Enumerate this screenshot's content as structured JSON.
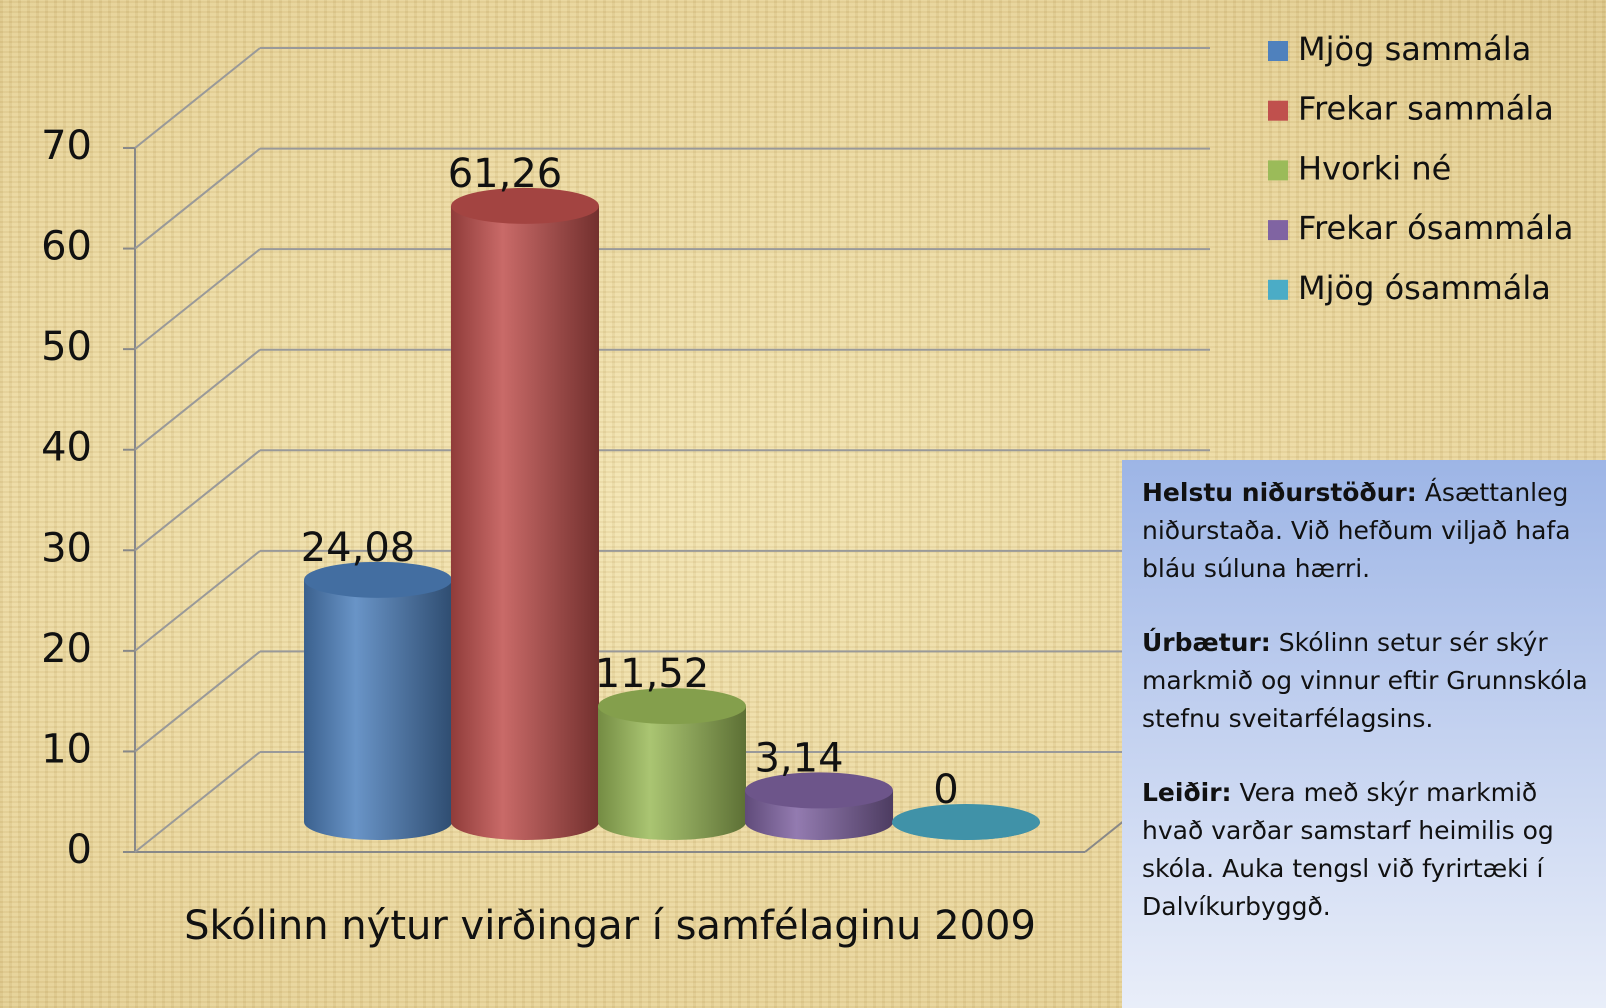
{
  "chart_data": {
    "type": "bar",
    "title": "Skólinn nýtur virðingar í samfélaginu 2009",
    "ylim": [
      0,
      70
    ],
    "yticks": [
      0,
      10,
      20,
      30,
      40,
      50,
      60,
      70
    ],
    "grid": true,
    "legend": "top-right",
    "series": [
      {
        "name": "Mjög sammála",
        "color": "#4f81bd",
        "values": [
          24.08
        ],
        "value_labels": [
          "24,08"
        ]
      },
      {
        "name": "Frekar sammála",
        "color": "#c0504d",
        "values": [
          61.26
        ],
        "value_labels": [
          "61,26"
        ]
      },
      {
        "name": "Hvorki né",
        "color": "#9bbb59",
        "values": [
          11.52
        ],
        "value_labels": [
          "11,52"
        ]
      },
      {
        "name": "Frekar ósammála",
        "color": "#8064a2",
        "values": [
          3.14
        ],
        "value_labels": [
          "3,14"
        ]
      },
      {
        "name": "Mjög ósammála",
        "color": "#4bacc6",
        "values": [
          0
        ],
        "value_labels": [
          "0"
        ]
      }
    ],
    "annotations": [
      {
        "heading": "Helstu niðurstöður:",
        "text": "Ásættanleg niðurstaða. Við hefðum viljað hafa bláu súluna hærri."
      },
      {
        "heading": "Úrbætur:",
        "text": "Skólinn setur sér skýr markmið og vinnur eftir Grunnskóla stefnu sveitarfélagsins."
      },
      {
        "heading": "Leiðir:",
        "text": "Vera með skýr markmið hvað varðar samstarf  heimilis og skóla.  Auka tengsl við fyrirtæki í Dalvíkurbyggð."
      }
    ]
  }
}
